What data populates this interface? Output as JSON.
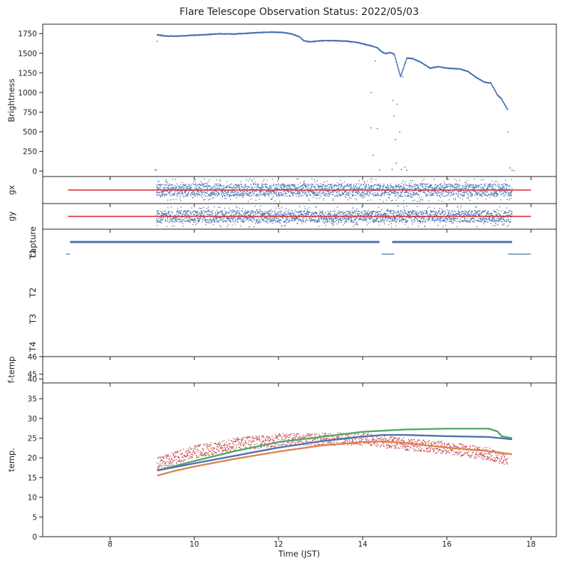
{
  "chart_data": {
    "type": "scatter",
    "title": "Flare Telescope Observation Status: 2022/05/03",
    "xlabel": "Time (JST)",
    "xlim": [
      6.4,
      18.6
    ],
    "x_ticks": [
      8,
      10,
      12,
      14,
      16,
      18
    ],
    "colors": {
      "blue": "#4c72b0",
      "red": "#d62728",
      "green": "#55a868",
      "orange": "#dd8452",
      "scatter_red": "#c44e52"
    },
    "panels": [
      {
        "id": "brightness",
        "ylabel": "Brightness",
        "ylim": [
          -70,
          1870
        ],
        "y_ticks": [
          0,
          250,
          500,
          750,
          1000,
          1250,
          1500,
          1750
        ],
        "series": [
          {
            "kind": "trace",
            "color": "#4c72b0",
            "points": [
              [
                9.12,
                1735
              ],
              [
                9.3,
                1720
              ],
              [
                9.6,
                1718
              ],
              [
                10.0,
                1730
              ],
              [
                10.3,
                1738
              ],
              [
                10.6,
                1748
              ],
              [
                10.9,
                1745
              ],
              [
                11.2,
                1752
              ],
              [
                11.5,
                1762
              ],
              [
                11.8,
                1770
              ],
              [
                12.1,
                1765
              ],
              [
                12.3,
                1748
              ],
              [
                12.5,
                1710
              ],
              [
                12.6,
                1660
              ],
              [
                12.75,
                1645
              ],
              [
                13.0,
                1660
              ],
              [
                13.3,
                1660
              ],
              [
                13.6,
                1655
              ],
              [
                13.9,
                1635
              ],
              [
                14.0,
                1620
              ],
              [
                14.2,
                1595
              ],
              [
                14.35,
                1570
              ],
              [
                14.45,
                1520
              ],
              [
                14.55,
                1495
              ],
              [
                14.65,
                1510
              ],
              [
                14.75,
                1490
              ],
              [
                14.9,
                1200
              ],
              [
                15.05,
                1440
              ],
              [
                15.2,
                1430
              ],
              [
                15.4,
                1380
              ],
              [
                15.6,
                1310
              ],
              [
                15.8,
                1330
              ],
              [
                16.0,
                1310
              ],
              [
                16.3,
                1300
              ],
              [
                16.5,
                1270
              ],
              [
                16.7,
                1190
              ],
              [
                16.9,
                1130
              ],
              [
                17.05,
                1120
              ],
              [
                17.2,
                970
              ],
              [
                17.3,
                920
              ],
              [
                17.38,
                840
              ],
              [
                17.45,
                780
              ]
            ]
          },
          {
            "kind": "dropouts",
            "color": "#4c72b0",
            "points": [
              [
                9.07,
                15
              ],
              [
                9.1,
                10
              ],
              [
                9.12,
                1650
              ],
              [
                14.2,
                1000
              ],
              [
                14.2,
                550
              ],
              [
                14.25,
                200
              ],
              [
                14.3,
                1400
              ],
              [
                14.35,
                540
              ],
              [
                14.4,
                10
              ],
              [
                14.7,
                20
              ],
              [
                14.72,
                900
              ],
              [
                14.75,
                700
              ],
              [
                14.78,
                400
              ],
              [
                14.8,
                100
              ],
              [
                14.82,
                850
              ],
              [
                14.85,
                1300
              ],
              [
                14.88,
                500
              ],
              [
                14.92,
                20
              ],
              [
                14.95,
                1200
              ],
              [
                15.0,
                50
              ],
              [
                15.05,
                10
              ],
              [
                17.45,
                500
              ],
              [
                17.5,
                40
              ],
              [
                17.55,
                10
              ],
              [
                17.6,
                5
              ]
            ]
          }
        ]
      },
      {
        "id": "gx",
        "ylabel": "gx",
        "series": [
          {
            "kind": "hline",
            "color": "#d62728",
            "x": [
              7.0,
              18.0
            ]
          },
          {
            "kind": "noise",
            "color": "#4c72b0",
            "x": [
              9.1,
              17.55
            ]
          }
        ]
      },
      {
        "id": "gy",
        "ylabel": "gy",
        "series": [
          {
            "kind": "hline",
            "color": "#d62728",
            "x": [
              7.0,
              18.0
            ]
          },
          {
            "kind": "noise",
            "color": "#4c72b0",
            "x": [
              9.1,
              17.55
            ]
          }
        ]
      },
      {
        "id": "capture",
        "ylabels": [
          "capture",
          "T1",
          "T2",
          "T3",
          "T4"
        ],
        "segments": [
          {
            "row": "capture",
            "color": "#4c72b0",
            "x": [
              7.05,
              14.4
            ]
          },
          {
            "row": "capture",
            "color": "#4c72b0",
            "x": [
              14.7,
              17.55
            ]
          },
          {
            "row": "T1",
            "color": "#4c72b0",
            "x": [
              6.95,
              7.05
            ]
          },
          {
            "row": "T1",
            "color": "#4c72b0",
            "x": [
              14.45,
              14.75
            ]
          },
          {
            "row": "T1",
            "color": "#4c72b0",
            "x": [
              17.45,
              18.0
            ]
          }
        ]
      },
      {
        "id": "ftemp",
        "ylabel": "f-temp",
        "ylim": [
          44.5,
          46
        ],
        "y_ticks": [
          45,
          46
        ]
      },
      {
        "id": "temp",
        "ylabel": "temp.",
        "ylim": [
          0,
          39
        ],
        "y_ticks": [
          0,
          5,
          10,
          15,
          20,
          25,
          30,
          35,
          40
        ],
        "series": [
          {
            "kind": "line",
            "color": "#55a868",
            "points": [
              [
                9.12,
                16.8
              ],
              [
                10,
                19.2
              ],
              [
                11,
                21.8
              ],
              [
                12,
                24.0
              ],
              [
                13,
                25.3
              ],
              [
                14,
                26.6
              ],
              [
                15,
                27.2
              ],
              [
                16,
                27.4
              ],
              [
                17,
                27.4
              ],
              [
                17.2,
                26.7
              ],
              [
                17.3,
                25.5
              ],
              [
                17.55,
                25.0
              ]
            ]
          },
          {
            "kind": "line",
            "color": "#4c72b0",
            "points": [
              [
                9.12,
                16.8
              ],
              [
                10,
                18.6
              ],
              [
                11,
                20.6
              ],
              [
                12,
                22.6
              ],
              [
                13,
                24.2
              ],
              [
                14,
                25.4
              ],
              [
                14.5,
                25.8
              ],
              [
                15,
                25.8
              ],
              [
                16,
                25.5
              ],
              [
                17,
                25.3
              ],
              [
                17.55,
                24.7
              ]
            ]
          },
          {
            "kind": "line",
            "color": "#dd8452",
            "points": [
              [
                9.12,
                15.5
              ],
              [
                9.5,
                16.6
              ],
              [
                10,
                17.8
              ],
              [
                11,
                19.8
              ],
              [
                12,
                21.6
              ],
              [
                13,
                23.1
              ],
              [
                14,
                24.0
              ],
              [
                14.5,
                24.2
              ],
              [
                15,
                23.8
              ],
              [
                16,
                22.6
              ],
              [
                17,
                21.7
              ],
              [
                17.55,
                20.9
              ]
            ]
          },
          {
            "kind": "noise",
            "color": "#c44e52",
            "points": [
              [
                9.12,
                18.5
              ],
              [
                10,
                21.5
              ],
              [
                11,
                23.5
              ],
              [
                12,
                24.5
              ],
              [
                13,
                24.7
              ],
              [
                14,
                24.8
              ],
              [
                15,
                23.5
              ],
              [
                16,
                22.5
              ],
              [
                17,
                21.0
              ],
              [
                17.45,
                19.5
              ]
            ]
          }
        ]
      }
    ]
  }
}
